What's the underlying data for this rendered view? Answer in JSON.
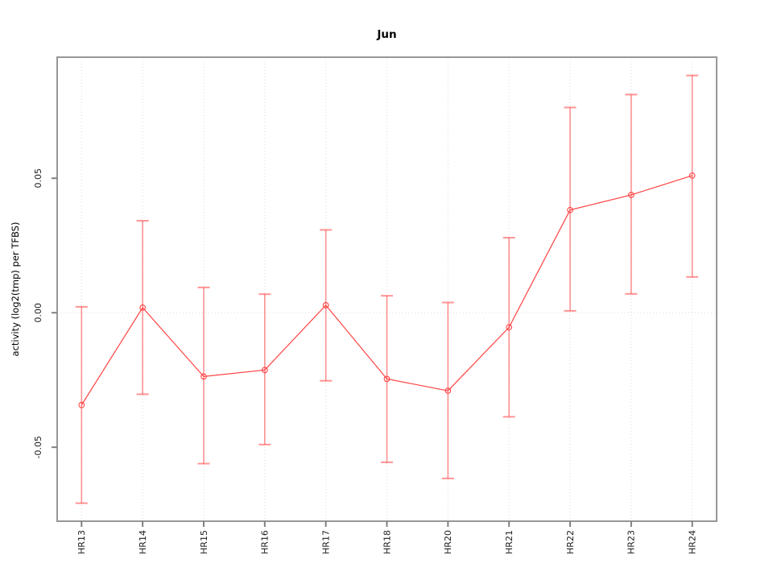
{
  "chart_data": {
    "type": "line",
    "subtype": "points-with-error-bars",
    "title": "Jun",
    "xlabel": "",
    "ylabel": "activity (log2(tmp) per TFBS)",
    "categories": [
      "HR13",
      "HR14",
      "HR15",
      "HR16",
      "HR17",
      "HR18",
      "HR20",
      "HR21",
      "HR22",
      "HR23",
      "HR24"
    ],
    "series": [
      {
        "name": "activity",
        "values": [
          -0.0343,
          0.0019,
          -0.0237,
          -0.0213,
          0.0028,
          -0.0246,
          -0.029,
          -0.0054,
          0.0382,
          0.0438,
          0.051
        ],
        "upper": [
          0.0022,
          0.0342,
          0.0094,
          0.0069,
          0.0308,
          0.0063,
          0.0038,
          0.0279,
          0.0763,
          0.0811,
          0.0882
        ],
        "lower": [
          -0.0708,
          -0.0303,
          -0.0561,
          -0.049,
          -0.0253,
          -0.0556,
          -0.0616,
          -0.0387,
          0.0007,
          0.007,
          0.0133
        ]
      }
    ],
    "ylim": [
      -0.0775,
      0.095
    ],
    "yticks": [
      -0.05,
      0.0,
      0.05
    ],
    "ytick_labels": [
      "-0.05",
      "0.00",
      "0.05"
    ],
    "grid": "vertical-dotted-per-category-plus-dotted-zero-line",
    "legend": "none",
    "marker": "open-circle",
    "colors": {
      "line": "#FF4343",
      "point": "#FF4343",
      "error_bar": "rgba(255,70,70,0.58)",
      "box_border": "#979797",
      "tick": "#808080",
      "grid": "#DADADA",
      "tick_label": "#1c1c1c",
      "background": "#ffffff"
    }
  }
}
